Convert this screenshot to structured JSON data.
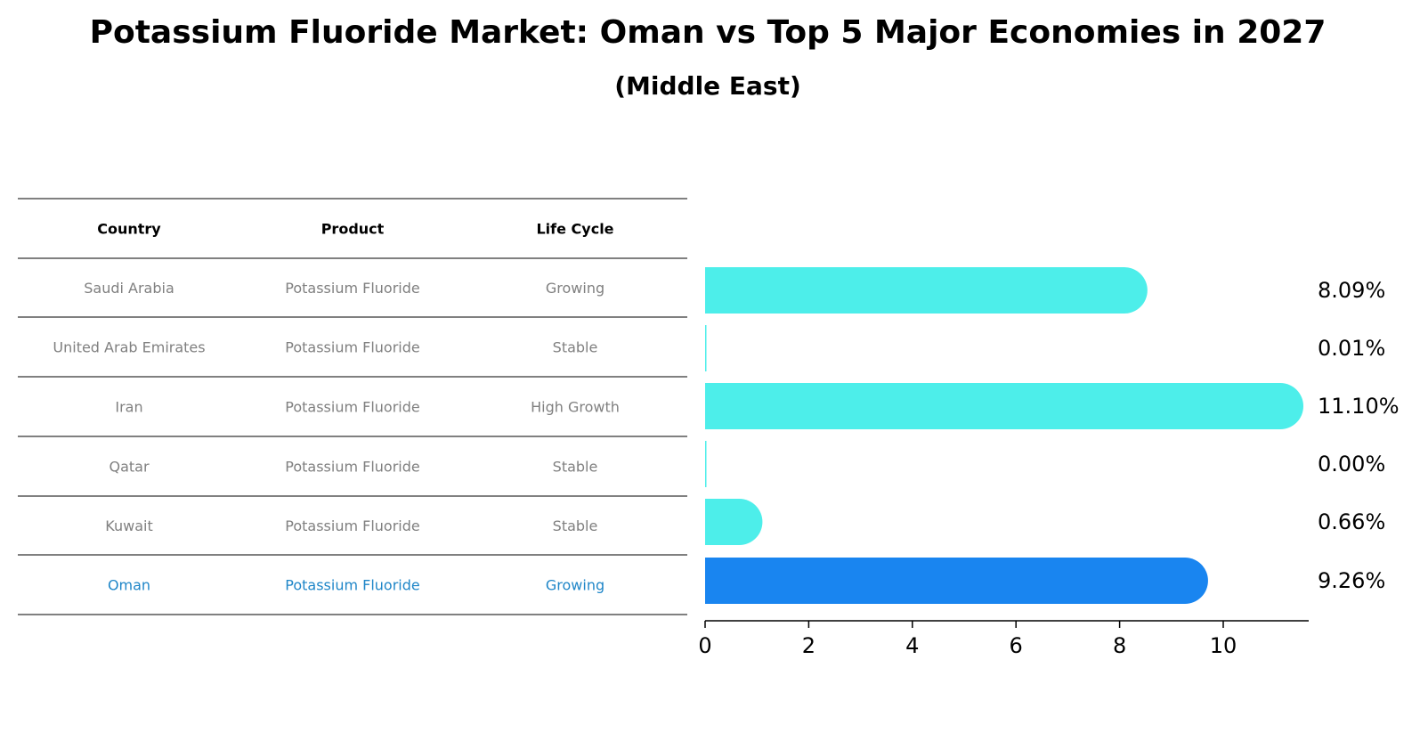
{
  "title": "Potassium Fluoride Market: Oman vs Top 5 Major Economies in 2027",
  "subtitle": "(Middle East)",
  "colors": {
    "bar": "#4DEEEA",
    "highlight_bar": "#1985F0",
    "highlight_text": "#1f86c8",
    "muted_text": "#808080"
  },
  "table": {
    "headers": [
      "Country",
      "Product",
      "Life Cycle"
    ],
    "rows": [
      {
        "country": "Saudi Arabia",
        "product": "Potassium Fluoride",
        "life_cycle": "Growing",
        "highlight": false
      },
      {
        "country": "United Arab Emirates",
        "product": "Potassium Fluoride",
        "life_cycle": "Stable",
        "highlight": false
      },
      {
        "country": "Iran",
        "product": "Potassium Fluoride",
        "life_cycle": "High Growth",
        "highlight": false
      },
      {
        "country": "Qatar",
        "product": "Potassium Fluoride",
        "life_cycle": "Stable",
        "highlight": false
      },
      {
        "country": "Kuwait",
        "product": "Potassium Fluoride",
        "life_cycle": "Stable",
        "highlight": false
      },
      {
        "country": "Oman",
        "product": "Potassium Fluoride",
        "life_cycle": "Growing",
        "highlight": true
      }
    ]
  },
  "chart_data": {
    "type": "bar",
    "orientation": "horizontal",
    "categories": [
      "Saudi Arabia",
      "United Arab Emirates",
      "Iran",
      "Qatar",
      "Kuwait",
      "Oman"
    ],
    "values": [
      8.09,
      0.01,
      11.1,
      0.0,
      0.66,
      9.26
    ],
    "value_labels": [
      "8.09%",
      "0.01%",
      "11.10%",
      "0.00%",
      "0.66%",
      "9.26%"
    ],
    "highlight_index": 5,
    "xlim": [
      0,
      11.6
    ],
    "xticks": [
      0,
      2,
      4,
      6,
      8,
      10
    ],
    "xlabel": "",
    "ylabel": "",
    "grid": false
  }
}
